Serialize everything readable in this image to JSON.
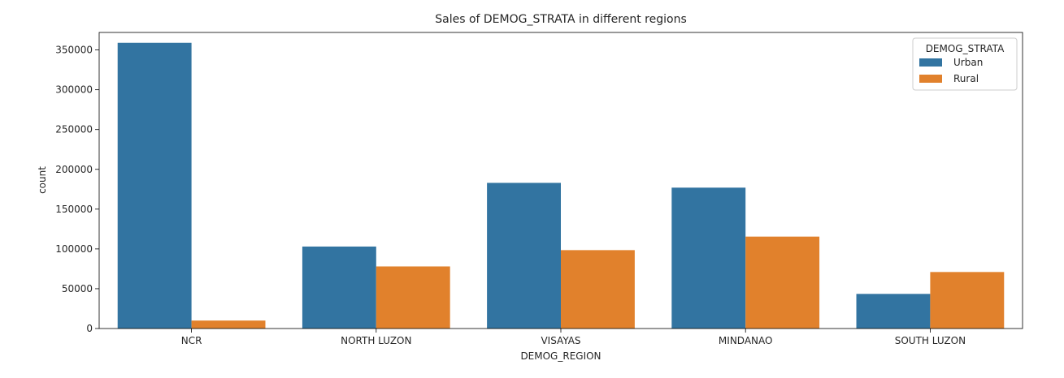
{
  "chart_data": {
    "type": "bar",
    "title": "Sales of DEMOG_STRATA in different regions",
    "xlabel": "DEMOG_REGION",
    "ylabel": "count",
    "categories": [
      "NCR",
      "NORTH LUZON",
      "VISAYAS",
      "MINDANAO",
      "SOUTH LUZON"
    ],
    "series": [
      {
        "name": "Urban",
        "color": "#3274a1",
        "values": [
          359000,
          103000,
          183000,
          177000,
          43500
        ]
      },
      {
        "name": "Rural",
        "color": "#e1812c",
        "values": [
          10000,
          78000,
          98500,
          115500,
          71000
        ]
      }
    ],
    "yticks": [
      0,
      50000,
      100000,
      150000,
      200000,
      250000,
      300000,
      350000
    ],
    "ylim": [
      0,
      372000
    ],
    "legend": {
      "title": "DEMOG_STRATA",
      "position": "top-right"
    },
    "grid": false
  }
}
